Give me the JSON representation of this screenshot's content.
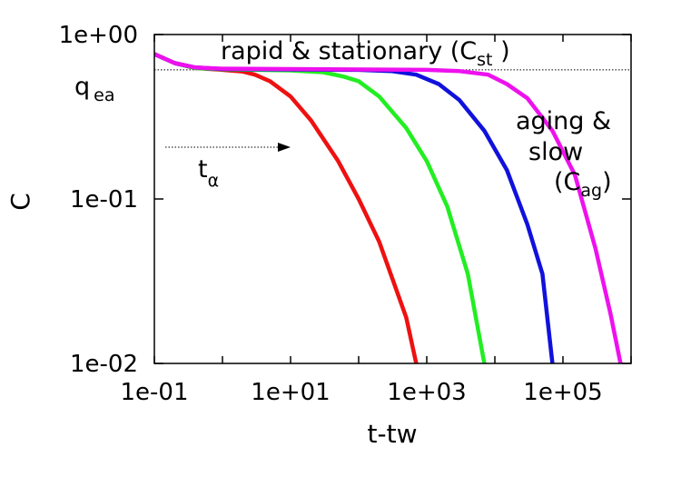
{
  "chart_data": {
    "type": "line",
    "xlabel": "t-tw",
    "ylabel": "C",
    "xscale": "log",
    "yscale": "log",
    "xlim": [
      0.1,
      1000000
    ],
    "ylim": [
      0.01,
      1
    ],
    "x_ticks": [
      "1e-01",
      "1e+01",
      "1e+03",
      "1e+05"
    ],
    "y_ticks": [
      "1e+00",
      "1e-01",
      "1e-02"
    ],
    "plateau_q_ea": 0.61,
    "series": [
      {
        "color": "#ee1111",
        "points": [
          [
            0.1,
            0.76
          ],
          [
            0.2,
            0.67
          ],
          [
            0.4,
            0.625
          ],
          [
            1,
            0.61
          ],
          [
            2,
            0.595
          ],
          [
            3,
            0.57
          ],
          [
            5,
            0.52
          ],
          [
            10,
            0.42
          ],
          [
            20,
            0.3
          ],
          [
            50,
            0.17
          ],
          [
            100,
            0.1
          ],
          [
            200,
            0.055
          ],
          [
            500,
            0.019
          ],
          [
            700,
            0.01
          ]
        ]
      },
      {
        "color": "#22ee22",
        "points": [
          [
            0.1,
            0.76
          ],
          [
            0.2,
            0.67
          ],
          [
            0.4,
            0.625
          ],
          [
            1,
            0.615
          ],
          [
            10,
            0.605
          ],
          [
            30,
            0.59
          ],
          [
            60,
            0.555
          ],
          [
            100,
            0.52
          ],
          [
            200,
            0.42
          ],
          [
            500,
            0.27
          ],
          [
            1000,
            0.17
          ],
          [
            2000,
            0.09
          ],
          [
            4000,
            0.035
          ],
          [
            7000,
            0.01
          ]
        ]
      },
      {
        "color": "#1111dd",
        "points": [
          [
            0.1,
            0.76
          ],
          [
            0.2,
            0.67
          ],
          [
            0.4,
            0.63
          ],
          [
            1,
            0.617
          ],
          [
            100,
            0.61
          ],
          [
            300,
            0.6
          ],
          [
            700,
            0.57
          ],
          [
            1500,
            0.5
          ],
          [
            3000,
            0.4
          ],
          [
            7000,
            0.26
          ],
          [
            15000,
            0.15
          ],
          [
            30000,
            0.07
          ],
          [
            50000,
            0.035
          ],
          [
            70000,
            0.01
          ]
        ]
      },
      {
        "color": "#ee11ee",
        "points": [
          [
            0.1,
            0.76
          ],
          [
            0.2,
            0.67
          ],
          [
            0.4,
            0.63
          ],
          [
            1,
            0.62
          ],
          [
            1000,
            0.61
          ],
          [
            3000,
            0.6
          ],
          [
            8000,
            0.57
          ],
          [
            15000,
            0.5
          ],
          [
            30000,
            0.41
          ],
          [
            70000,
            0.26
          ],
          [
            150000,
            0.14
          ],
          [
            300000,
            0.05
          ],
          [
            500000,
            0.02
          ],
          [
            700000,
            0.01
          ]
        ]
      }
    ],
    "annotations": {
      "top_main": "rapid & stationary (C",
      "top_sub": "st",
      "top_close": " )",
      "q_main": "q",
      "q_sub": "ea",
      "t_main": "t",
      "t_sub": "α",
      "aging_line1": "aging &",
      "aging_line2": "slow",
      "aging_open": "(C",
      "aging_sub": "ag",
      "aging_close": ")"
    },
    "grid": false,
    "legend": "none"
  }
}
